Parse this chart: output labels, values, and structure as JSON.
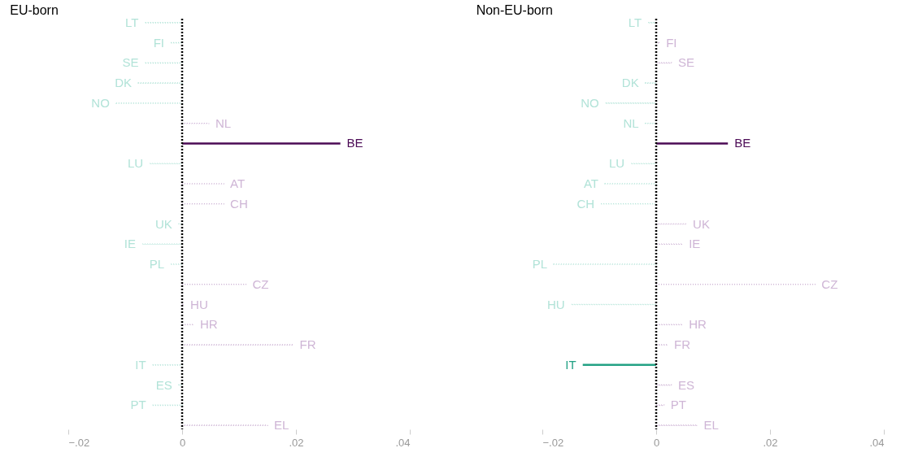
{
  "chart_data": [
    {
      "type": "bar",
      "orientation": "horizontal",
      "title": "EU-born",
      "categories": [
        "LT",
        "FI",
        "SE",
        "DK",
        "NO",
        "NL",
        "BE",
        "LU",
        "AT",
        "CH",
        "UK",
        "IE",
        "PL",
        "CZ",
        "HU",
        "HR",
        "FR",
        "IT",
        "ES",
        "PT",
        "EL"
      ],
      "series": [
        {
          "line_style": "dotted",
          "values": [
            -0.0065,
            -0.002,
            -0.0065,
            -0.0077,
            -0.0116,
            0.0047,
            null,
            -0.0057,
            0.0073,
            0.0073,
            -0.0006,
            -0.007,
            -0.002,
            0.0112,
            0.0003,
            0.002,
            0.0195,
            -0.0052,
            -0.0006,
            -0.0052,
            0.015
          ],
          "colors": [
            "#b2e3d8",
            "#b2e3d8",
            "#b2e3d8",
            "#b2e3d8",
            "#b2e3d8",
            "#cfb6d6",
            null,
            "#b2e3d8",
            "#cfb6d6",
            "#cfb6d6",
            "#b2e3d8",
            "#b2e3d8",
            "#b2e3d8",
            "#cfb6d6",
            "#cfb6d6",
            "#cfb6d6",
            "#cfb6d6",
            "#b2e3d8",
            "#b2e3d8",
            "#b2e3d8",
            "#cfb6d6"
          ]
        },
        {
          "line_style": "solid",
          "values": [
            null,
            null,
            null,
            null,
            null,
            null,
            0.0278,
            null,
            null,
            null,
            null,
            null,
            null,
            null,
            null,
            null,
            null,
            null,
            null,
            null,
            null
          ],
          "colors": [
            null,
            null,
            null,
            null,
            null,
            null,
            "#4b0a55",
            null,
            null,
            null,
            null,
            null,
            null,
            null,
            null,
            null,
            null,
            null,
            null,
            null,
            null
          ]
        }
      ],
      "xlim": [
        -0.02,
        0.04
      ],
      "xticks": [
        {
          "value": -0.02,
          "label": "−.02"
        },
        0,
        {
          "value": 0.02,
          "label": ".02"
        },
        {
          "value": 0.04,
          "label": ".04"
        }
      ],
      "ref_lines": [
        {
          "axis": "x",
          "value": 0,
          "color": "#000000",
          "line_style": "dashed"
        }
      ],
      "grid": false
    },
    {
      "type": "bar",
      "orientation": "horizontal",
      "title": "Non-EU-born",
      "categories": [
        "LT",
        "FI",
        "SE",
        "DK",
        "NO",
        "NL",
        "BE",
        "LU",
        "AT",
        "CH",
        "UK",
        "IE",
        "PL",
        "CZ",
        "HU",
        "HR",
        "FR",
        "IT",
        "ES",
        "PT",
        "EL"
      ],
      "series": [
        {
          "line_style": "dotted",
          "values": [
            -0.0014,
            0.0006,
            0.0027,
            -0.0019,
            -0.0089,
            -0.0019,
            null,
            -0.0044,
            -0.009,
            -0.0097,
            0.0053,
            0.0046,
            -0.018,
            0.0279,
            -0.0149,
            0.0046,
            0.002,
            null,
            0.0027,
            0.0014,
            0.0072
          ],
          "colors": [
            "#b2e3d8",
            "#cfb6d6",
            "#cfb6d6",
            "#b2e3d8",
            "#b2e3d8",
            "#b2e3d8",
            null,
            "#b2e3d8",
            "#b2e3d8",
            "#b2e3d8",
            "#cfb6d6",
            "#cfb6d6",
            "#b2e3d8",
            "#cfb6d6",
            "#b2e3d8",
            "#cfb6d6",
            "#cfb6d6",
            null,
            "#cfb6d6",
            "#cfb6d6",
            "#cfb6d6"
          ]
        },
        {
          "line_style": "solid",
          "values": [
            null,
            null,
            null,
            null,
            null,
            null,
            0.0126,
            null,
            null,
            null,
            null,
            null,
            null,
            null,
            null,
            null,
            null,
            -0.0129,
            null,
            null,
            null
          ],
          "colors": [
            null,
            null,
            null,
            null,
            null,
            null,
            "#4b0a55",
            null,
            null,
            null,
            null,
            null,
            null,
            null,
            null,
            null,
            null,
            "#22a184",
            null,
            null,
            null
          ]
        }
      ],
      "xlim": [
        -0.02,
        0.04
      ],
      "xticks": [
        {
          "value": -0.02,
          "label": "−.02"
        },
        0,
        {
          "value": 0.02,
          "label": ".02"
        },
        {
          "value": 0.04,
          "label": ".04"
        }
      ],
      "ref_lines": [
        {
          "axis": "x",
          "value": 0,
          "color": "#000000",
          "line_style": "dashed"
        }
      ],
      "grid": false
    }
  ]
}
